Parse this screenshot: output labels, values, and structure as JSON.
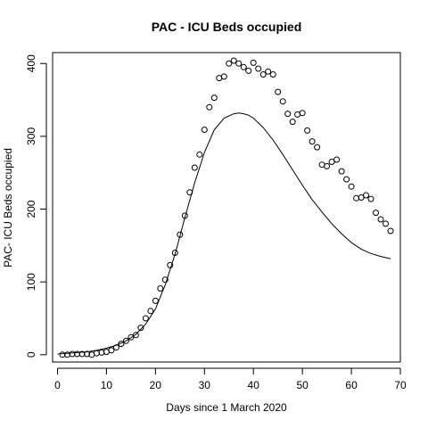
{
  "chart_data": {
    "type": "scatter",
    "title": "PAC - ICU Beds occupied",
    "xlabel": "Days since 1 March 2020",
    "ylabel": "PAC- ICU Beds occupied",
    "xlim": [
      -1,
      70
    ],
    "ylim": [
      -10,
      415
    ],
    "xticks": [
      0,
      10,
      20,
      30,
      40,
      50,
      60,
      70
    ],
    "yticks": [
      0,
      100,
      200,
      300,
      400
    ],
    "grid": false,
    "series": [
      {
        "kind": "points",
        "marker": "open-circle",
        "x": [
          1,
          2,
          3,
          4,
          5,
          6,
          7,
          8,
          9,
          10,
          11,
          12,
          13,
          14,
          15,
          16,
          17,
          18,
          19,
          20,
          21,
          22,
          23,
          24,
          25,
          26,
          27,
          28,
          29,
          30,
          31,
          32,
          33,
          34,
          35,
          36,
          37,
          38,
          39,
          40,
          41,
          42,
          43,
          44,
          45,
          46,
          47,
          48,
          49,
          50,
          51,
          52,
          53,
          54,
          55,
          56,
          57,
          58,
          59,
          60,
          61,
          62,
          63,
          64,
          65,
          66,
          67,
          68
        ],
        "y": [
          0,
          0,
          1,
          1,
          1,
          1,
          0,
          2,
          3,
          4,
          6,
          10,
          15,
          19,
          24,
          27,
          37,
          50,
          60,
          74,
          91,
          103,
          123,
          140,
          165,
          191,
          223,
          257,
          275,
          309,
          340,
          353,
          380,
          382,
          400,
          404,
          400,
          395,
          390,
          401,
          393,
          385,
          389,
          385,
          361,
          348,
          331,
          320,
          330,
          332,
          308,
          293,
          285,
          261,
          259,
          265,
          268,
          252,
          241,
          231,
          215,
          216,
          219,
          214,
          195,
          186,
          180,
          170
        ]
      },
      {
        "kind": "line",
        "x": [
          0,
          2,
          4,
          6,
          8,
          10,
          12,
          14,
          16,
          18,
          20,
          22,
          24,
          26,
          28,
          30,
          32,
          34,
          36,
          37,
          38,
          39,
          40,
          42,
          44,
          46,
          48,
          50,
          52,
          54,
          56,
          58,
          60,
          62,
          64,
          66,
          68
        ],
        "y": [
          1,
          2,
          3,
          4,
          6,
          9,
          13,
          19,
          28,
          42,
          63,
          96,
          138,
          188,
          236,
          278,
          309,
          325,
          331,
          332,
          331,
          329,
          325,
          312,
          295,
          275,
          254,
          233,
          213,
          196,
          180,
          166,
          154,
          145,
          139,
          135,
          132
        ]
      }
    ]
  }
}
